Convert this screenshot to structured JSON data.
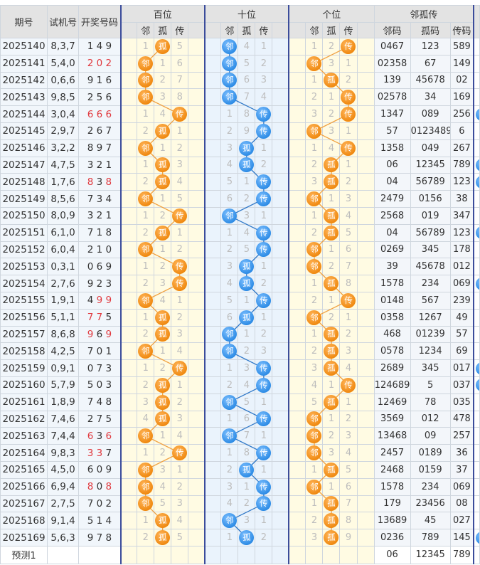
{
  "headers": {
    "period": "期号",
    "test_number": "试机号",
    "draw_number": "开奖号码",
    "groups": [
      "百位",
      "十位",
      "个位"
    ],
    "sub": [
      "邻",
      "孤",
      "传"
    ],
    "summary": "邻孤传",
    "summary_sub": [
      "邻码",
      "孤码",
      "传码"
    ]
  },
  "state_labels": [
    "邻",
    "孤",
    "传"
  ],
  "colors": {
    "hundreds_ball": "#f08a12",
    "tens_ball": "#2f8de6",
    "units_ball": "#f08a12",
    "repeat_digit": "#e0393e",
    "divider": "#3b4c9b"
  },
  "rows": [
    {
      "period": "2025140",
      "test": "8,3,7",
      "draw": [
        "1",
        "4",
        "9"
      ],
      "red": [],
      "pos": [
        [
          "1",
          "孤",
          "5"
        ],
        [
          "邻",
          "4",
          "1"
        ],
        [
          "1",
          "2",
          "传"
        ]
      ],
      "codes": [
        "0467",
        "123",
        "589"
      ],
      "extra_ball": false
    },
    {
      "period": "2025141",
      "test": "5,4,0",
      "draw": [
        "2",
        "0",
        "2"
      ],
      "red": [
        0,
        1,
        2
      ],
      "pos": [
        [
          "邻",
          "1",
          "6"
        ],
        [
          "邻",
          "5",
          "2"
        ],
        [
          "邻",
          "3",
          "1"
        ]
      ],
      "codes": [
        "02358",
        "67",
        "149"
      ],
      "extra_ball": false
    },
    {
      "period": "2025142",
      "test": "0,6,6",
      "draw": [
        "9",
        "1",
        "6"
      ],
      "red": [],
      "pos": [
        [
          "邻",
          "2",
          "7"
        ],
        [
          "邻",
          "6",
          "3"
        ],
        [
          "1",
          "孤",
          "2"
        ]
      ],
      "codes": [
        "139",
        "45678",
        "02"
      ],
      "extra_ball": false
    },
    {
      "period": "2025143",
      "test": "9,8,5",
      "draw": [
        "2",
        "5",
        "6"
      ],
      "red": [],
      "pos": [
        [
          "邻",
          "3",
          "8"
        ],
        [
          "邻",
          "7",
          "4"
        ],
        [
          "2",
          "1",
          "传"
        ]
      ],
      "codes": [
        "02578",
        "34",
        "169"
      ],
      "extra_ball": false
    },
    {
      "period": "2025144",
      "test": "3,0,4",
      "draw": [
        "6",
        "6",
        "6"
      ],
      "red": [
        0,
        1,
        2
      ],
      "pos": [
        [
          "1",
          "4",
          "传"
        ],
        [
          "1",
          "8",
          "传"
        ],
        [
          "3",
          "2",
          "传"
        ]
      ],
      "codes": [
        "1347",
        "089",
        "256"
      ],
      "extra_ball": true
    },
    {
      "period": "2025145",
      "test": "2,9,7",
      "draw": [
        "2",
        "6",
        "7"
      ],
      "red": [],
      "pos": [
        [
          "2",
          "孤",
          "1"
        ],
        [
          "2",
          "9",
          "传"
        ],
        [
          "邻",
          "3",
          "1"
        ]
      ],
      "codes": [
        "57",
        "0123489",
        "6"
      ],
      "extra_ball": false
    },
    {
      "period": "2025146",
      "test": "3,2,2",
      "draw": [
        "8",
        "9",
        "7"
      ],
      "red": [],
      "pos": [
        [
          "邻",
          "1",
          "2"
        ],
        [
          "3",
          "孤",
          "1"
        ],
        [
          "1",
          "4",
          "传"
        ]
      ],
      "codes": [
        "1358",
        "049",
        "267"
      ],
      "extra_ball": false
    },
    {
      "period": "2025147",
      "test": "4,7,5",
      "draw": [
        "3",
        "2",
        "1"
      ],
      "red": [],
      "pos": [
        [
          "1",
          "孤",
          "3"
        ],
        [
          "4",
          "孤",
          "2"
        ],
        [
          "2",
          "孤",
          "1"
        ]
      ],
      "codes": [
        "06",
        "12345",
        "789"
      ],
      "extra_ball": true
    },
    {
      "period": "2025148",
      "test": "1,7,6",
      "draw": [
        "8",
        "3",
        "8"
      ],
      "red": [
        0,
        2
      ],
      "pos": [
        [
          "2",
          "孤",
          "4"
        ],
        [
          "5",
          "1",
          "传"
        ],
        [
          "3",
          "孤",
          "2"
        ]
      ],
      "codes": [
        "04",
        "56789",
        "123"
      ],
      "extra_ball": true
    },
    {
      "period": "2025149",
      "test": "8,5,6",
      "draw": [
        "7",
        "3",
        "4"
      ],
      "red": [],
      "pos": [
        [
          "邻",
          "1",
          "5"
        ],
        [
          "6",
          "2",
          "传"
        ],
        [
          "邻",
          "1",
          "3"
        ]
      ],
      "codes": [
        "2479",
        "0156",
        "38"
      ],
      "extra_ball": false
    },
    {
      "period": "2025150",
      "test": "8,0,9",
      "draw": [
        "3",
        "2",
        "1"
      ],
      "red": [],
      "pos": [
        [
          "1",
          "2",
          "传"
        ],
        [
          "邻",
          "3",
          "1"
        ],
        [
          "1",
          "孤",
          "4"
        ]
      ],
      "codes": [
        "2568",
        "019",
        "347"
      ],
      "extra_ball": false
    },
    {
      "period": "2025151",
      "test": "6,1,0",
      "draw": [
        "7",
        "1",
        "8"
      ],
      "red": [],
      "pos": [
        [
          "2",
          "孤",
          "1"
        ],
        [
          "1",
          "4",
          "传"
        ],
        [
          "2",
          "孤",
          "5"
        ]
      ],
      "codes": [
        "04",
        "56789",
        "123"
      ],
      "extra_ball": true
    },
    {
      "period": "2025152",
      "test": "6,0,4",
      "draw": [
        "2",
        "1",
        "0"
      ],
      "red": [],
      "pos": [
        [
          "邻",
          "1",
          "2"
        ],
        [
          "2",
          "5",
          "传"
        ],
        [
          "邻",
          "1",
          "6"
        ]
      ],
      "codes": [
        "0269",
        "345",
        "178"
      ],
      "extra_ball": false
    },
    {
      "period": "2025153",
      "test": "0,3,1",
      "draw": [
        "0",
        "6",
        "9"
      ],
      "red": [],
      "pos": [
        [
          "1",
          "2",
          "传"
        ],
        [
          "3",
          "孤",
          "1"
        ],
        [
          "邻",
          "2",
          "7"
        ]
      ],
      "codes": [
        "39",
        "45678",
        "012"
      ],
      "extra_ball": false
    },
    {
      "period": "2025154",
      "test": "2,7,6",
      "draw": [
        "9",
        "2",
        "3"
      ],
      "red": [],
      "pos": [
        [
          "2",
          "3",
          "传"
        ],
        [
          "4",
          "孤",
          "2"
        ],
        [
          "1",
          "孤",
          "8"
        ]
      ],
      "codes": [
        "1578",
        "234",
        "069"
      ],
      "extra_ball": true
    },
    {
      "period": "2025155",
      "test": "1,9,1",
      "draw": [
        "4",
        "9",
        "9"
      ],
      "red": [
        1,
        2
      ],
      "pos": [
        [
          "邻",
          "4",
          "1"
        ],
        [
          "5",
          "1",
          "传"
        ],
        [
          "2",
          "1",
          "传"
        ]
      ],
      "codes": [
        "0148",
        "567",
        "239"
      ],
      "extra_ball": false
    },
    {
      "period": "2025156",
      "test": "5,1,1",
      "draw": [
        "7",
        "7",
        "5"
      ],
      "red": [
        0,
        1
      ],
      "pos": [
        [
          "1",
          "孤",
          "2"
        ],
        [
          "6",
          "孤",
          "1"
        ],
        [
          "邻",
          "2",
          "1"
        ]
      ],
      "codes": [
        "0358",
        "1267",
        "49"
      ],
      "extra_ball": false
    },
    {
      "period": "2025157",
      "test": "8,6,8",
      "draw": [
        "9",
        "6",
        "9"
      ],
      "red": [
        0,
        2
      ],
      "pos": [
        [
          "2",
          "孤",
          "3"
        ],
        [
          "邻",
          "1",
          "2"
        ],
        [
          "1",
          "孤",
          "2"
        ]
      ],
      "codes": [
        "468",
        "01239",
        "57"
      ],
      "extra_ball": false
    },
    {
      "period": "2025158",
      "test": "4,2,5",
      "draw": [
        "7",
        "0",
        "1"
      ],
      "red": [],
      "pos": [
        [
          "邻",
          "1",
          "4"
        ],
        [
          "邻",
          "2",
          "3"
        ],
        [
          "2",
          "孤",
          "3"
        ]
      ],
      "codes": [
        "0578",
        "1234",
        "69"
      ],
      "extra_ball": false
    },
    {
      "period": "2025159",
      "test": "0,9,1",
      "draw": [
        "0",
        "7",
        "3"
      ],
      "red": [],
      "pos": [
        [
          "1",
          "2",
          "传"
        ],
        [
          "1",
          "3",
          "传"
        ],
        [
          "3",
          "孤",
          "4"
        ]
      ],
      "codes": [
        "2689",
        "345",
        "017"
      ],
      "extra_ball": true
    },
    {
      "period": "2025160",
      "test": "5,7,9",
      "draw": [
        "5",
        "0",
        "3"
      ],
      "red": [],
      "pos": [
        [
          "2",
          "孤",
          "1"
        ],
        [
          "2",
          "4",
          "传"
        ],
        [
          "4",
          "1",
          "传"
        ]
      ],
      "codes": [
        "124689",
        "5",
        "037"
      ],
      "extra_ball": true
    },
    {
      "period": "2025161",
      "test": "1,8,9",
      "draw": [
        "7",
        "4",
        "8"
      ],
      "red": [],
      "pos": [
        [
          "3",
          "孤",
          "2"
        ],
        [
          "邻",
          "5",
          "1"
        ],
        [
          "5",
          "孤",
          "1"
        ]
      ],
      "codes": [
        "12469",
        "78",
        "035"
      ],
      "extra_ball": false
    },
    {
      "period": "2025162",
      "test": "7,4,6",
      "draw": [
        "2",
        "7",
        "5"
      ],
      "red": [],
      "pos": [
        [
          "4",
          "孤",
          "3"
        ],
        [
          "1",
          "6",
          "传"
        ],
        [
          "邻",
          "1",
          "2"
        ]
      ],
      "codes": [
        "3569",
        "012",
        "478"
      ],
      "extra_ball": false
    },
    {
      "period": "2025163",
      "test": "7,4,4",
      "draw": [
        "6",
        "3",
        "6"
      ],
      "red": [
        0,
        2
      ],
      "pos": [
        [
          "邻",
          "1",
          "4"
        ],
        [
          "邻",
          "7",
          "1"
        ],
        [
          "邻",
          "2",
          "3"
        ]
      ],
      "codes": [
        "13468",
        "09",
        "257"
      ],
      "extra_ball": false
    },
    {
      "period": "2025164",
      "test": "9,8,3",
      "draw": [
        "3",
        "3",
        "7"
      ],
      "red": [
        0,
        1
      ],
      "pos": [
        [
          "1",
          "2",
          "传"
        ],
        [
          "1",
          "8",
          "传"
        ],
        [
          "邻",
          "3",
          "4"
        ]
      ],
      "codes": [
        "2457",
        "0189",
        "36"
      ],
      "extra_ball": false
    },
    {
      "period": "2025165",
      "test": "4,5,0",
      "draw": [
        "6",
        "0",
        "9"
      ],
      "red": [],
      "pos": [
        [
          "邻",
          "3",
          "1"
        ],
        [
          "2",
          "孤",
          "1"
        ],
        [
          "1",
          "孤",
          "5"
        ]
      ],
      "codes": [
        "2468",
        "0159",
        "37"
      ],
      "extra_ball": false
    },
    {
      "period": "2025166",
      "test": "6,9,4",
      "draw": [
        "8",
        "0",
        "8"
      ],
      "red": [
        0,
        2
      ],
      "pos": [
        [
          "邻",
          "4",
          "2"
        ],
        [
          "3",
          "1",
          "传"
        ],
        [
          "邻",
          "1",
          "6"
        ]
      ],
      "codes": [
        "1578",
        "234",
        "069"
      ],
      "extra_ball": false
    },
    {
      "period": "2025167",
      "test": "2,7,5",
      "draw": [
        "7",
        "0",
        "2"
      ],
      "red": [],
      "pos": [
        [
          "邻",
          "5",
          "3"
        ],
        [
          "4",
          "2",
          "传"
        ],
        [
          "1",
          "孤",
          "7"
        ]
      ],
      "codes": [
        "179",
        "23456",
        "08"
      ],
      "extra_ball": false
    },
    {
      "period": "2025168",
      "test": "9,1,4",
      "draw": [
        "5",
        "1",
        "4"
      ],
      "red": [],
      "pos": [
        [
          "1",
          "孤",
          "4"
        ],
        [
          "邻",
          "3",
          "1"
        ],
        [
          "2",
          "孤",
          "8"
        ]
      ],
      "codes": [
        "13689",
        "45",
        "027"
      ],
      "extra_ball": false
    },
    {
      "period": "2025169",
      "test": "5,6,3",
      "draw": [
        "9",
        "7",
        "8"
      ],
      "red": [],
      "pos": [
        [
          "2",
          "孤",
          "5"
        ],
        [
          "1",
          "孤",
          "2"
        ],
        [
          "3",
          "孤",
          "9"
        ]
      ],
      "codes": [
        "0236",
        "789",
        "145"
      ],
      "extra_ball": true
    }
  ],
  "prediction": {
    "label": "预测1",
    "codes": [
      "06",
      "12345",
      "789"
    ]
  }
}
